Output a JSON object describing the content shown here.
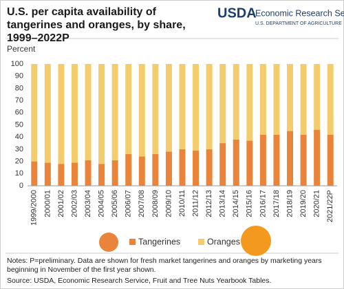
{
  "chart_data": {
    "type": "stacked-bar",
    "title": "U.S. per capita availability of tangerines and oranges, by share, 1999–2022P",
    "logo": {
      "mark": "USDA",
      "agency": "Economic Research Service",
      "department": "U.S. DEPARTMENT OF AGRICULTURE"
    },
    "ylabel": "Percent",
    "categories": [
      "1999/2000",
      "2000/01",
      "2001/02",
      "2002/03",
      "2003/04",
      "2004/05",
      "2005/06",
      "2006/07",
      "2007/08",
      "2008/09",
      "2009/10",
      "2010/11",
      "2011/12",
      "2012/13",
      "2013/14",
      "2014/15",
      "2015/16",
      "2016/17",
      "2017/18",
      "2018/19",
      "2019/20",
      "2020/21",
      "2021/22P"
    ],
    "series": [
      {
        "name": "Tangerines",
        "color": "#e9843a",
        "values": [
          20,
          19,
          18,
          19,
          21,
          18,
          21,
          26,
          24,
          26,
          28,
          30,
          29,
          30,
          35,
          38,
          37,
          42,
          42,
          45,
          42,
          46,
          42
        ]
      },
      {
        "name": "Oranges",
        "color": "#f3cd6d",
        "values": [
          80,
          81,
          82,
          81,
          79,
          82,
          79,
          74,
          76,
          74,
          72,
          70,
          71,
          70,
          65,
          62,
          63,
          58,
          58,
          55,
          58,
          54,
          58
        ]
      }
    ],
    "ylim": [
      0,
      100
    ],
    "yticks": [
      0,
      10,
      20,
      30,
      40,
      50,
      60,
      70,
      80,
      90,
      100
    ],
    "grid": false,
    "notes": "Notes: P=preliminary. Data are shown for fresh market tangerines and oranges by marketing years beginning in November of the first year shown.",
    "source": "Source: USDA, Economic Research Service, Fruit and Tree Nuts Yearbook Tables."
  }
}
